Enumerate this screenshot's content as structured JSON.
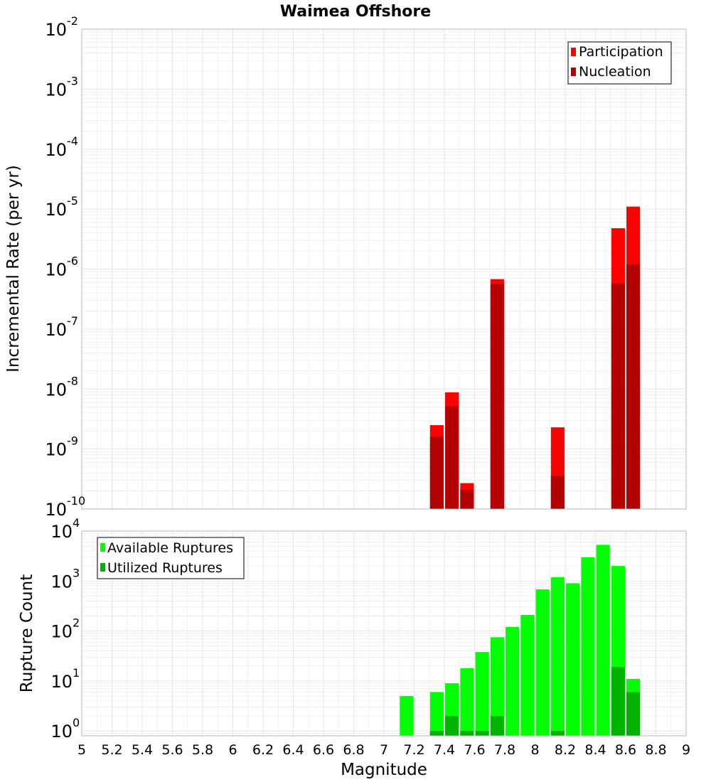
{
  "title": "Waimea Offshore",
  "colors": {
    "participation": "#ff0000",
    "nucleation": "#b30000",
    "available": "#00ff00",
    "utilized": "#00b200",
    "grid": "#e6e6e6",
    "axis": "#b4b4b4"
  },
  "chart_data": [
    {
      "type": "bar",
      "name": "rate-panel",
      "title": "Waimea Offshore",
      "xlabel": "Magnitude",
      "ylabel": "Incremental Rate (per yr)",
      "xlim": [
        5,
        9
      ],
      "ylim": [
        1e-10,
        0.01
      ],
      "yscale": "log",
      "y_tick_exponents": [
        "-10",
        "-9",
        "-8",
        "-7",
        "-6",
        "-5",
        "-4",
        "-3",
        "-2"
      ],
      "y_tick_base": "10",
      "grid": true,
      "legend_position": "top-right",
      "bar_width": 0.09,
      "series": [
        {
          "name": "Participation",
          "color": "#ff0000",
          "points": [
            {
              "x": 7.35,
              "y": 2.5e-09
            },
            {
              "x": 7.45,
              "y": 8.8e-09
            },
            {
              "x": 7.55,
              "y": 2.7e-10
            },
            {
              "x": 7.75,
              "y": 6.8e-07
            },
            {
              "x": 8.15,
              "y": 2.3e-09
            },
            {
              "x": 8.55,
              "y": 4.8e-06
            },
            {
              "x": 8.65,
              "y": 1.1e-05
            }
          ]
        },
        {
          "name": "Nucleation",
          "color": "#b30000",
          "points": [
            {
              "x": 7.35,
              "y": 1.6e-09
            },
            {
              "x": 7.45,
              "y": 5.2e-09
            },
            {
              "x": 7.55,
              "y": 2.1e-10
            },
            {
              "x": 7.75,
              "y": 5.6e-07
            },
            {
              "x": 8.15,
              "y": 3.6e-10
            },
            {
              "x": 8.55,
              "y": 5.8e-07
            },
            {
              "x": 8.65,
              "y": 1.2e-06
            }
          ]
        }
      ]
    },
    {
      "type": "bar",
      "name": "count-panel",
      "xlabel": "Magnitude",
      "ylabel": "Rupture Count",
      "xlim": [
        5,
        9
      ],
      "ylim": [
        0.8,
        10000
      ],
      "yscale": "log",
      "y_tick_exponents": [
        "0",
        "1",
        "2",
        "3",
        "4"
      ],
      "y_tick_base": "10",
      "x_ticks": [
        "5",
        "5.2",
        "5.4",
        "5.6",
        "5.8",
        "6",
        "6.2",
        "6.4",
        "6.6",
        "6.8",
        "7",
        "7.2",
        "7.4",
        "7.6",
        "7.8",
        "8",
        "8.2",
        "8.4",
        "8.6",
        "8.8",
        "9"
      ],
      "grid": true,
      "legend_position": "top-left",
      "bar_width": 0.09,
      "series": [
        {
          "name": "Available Ruptures",
          "color": "#00ff00",
          "points": [
            {
              "x": 7.15,
              "y": 5
            },
            {
              "x": 7.35,
              "y": 6
            },
            {
              "x": 7.45,
              "y": 9
            },
            {
              "x": 7.55,
              "y": 18
            },
            {
              "x": 7.65,
              "y": 38
            },
            {
              "x": 7.75,
              "y": 75
            },
            {
              "x": 7.85,
              "y": 120
            },
            {
              "x": 7.95,
              "y": 210
            },
            {
              "x": 8.05,
              "y": 680
            },
            {
              "x": 8.15,
              "y": 1200
            },
            {
              "x": 8.25,
              "y": 900
            },
            {
              "x": 8.35,
              "y": 3000
            },
            {
              "x": 8.45,
              "y": 5300
            },
            {
              "x": 8.55,
              "y": 2000
            },
            {
              "x": 8.65,
              "y": 11
            }
          ]
        },
        {
          "name": "Utilized Ruptures",
          "color": "#00b200",
          "points": [
            {
              "x": 7.35,
              "y": 1
            },
            {
              "x": 7.45,
              "y": 2
            },
            {
              "x": 7.55,
              "y": 1
            },
            {
              "x": 7.65,
              "y": 1
            },
            {
              "x": 7.75,
              "y": 2
            },
            {
              "x": 8.15,
              "y": 1
            },
            {
              "x": 8.55,
              "y": 19
            },
            {
              "x": 8.65,
              "y": 6
            }
          ]
        }
      ]
    }
  ]
}
